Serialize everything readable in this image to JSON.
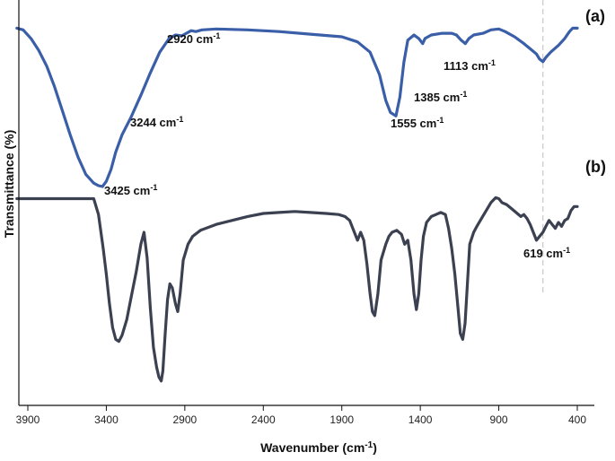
{
  "chart_data": {
    "type": "line",
    "xlabel": "Wavenumber (cm",
    "xlabel_sup": "-1",
    "xlabel_close": ")",
    "ylabel": "Transmittance (%)",
    "xlim": [
      4000,
      300
    ],
    "x_reversed": true,
    "x_ticks": [
      3900,
      3400,
      2900,
      2400,
      1900,
      1400,
      900,
      400
    ],
    "grid": false,
    "legend": "none",
    "reference_line_x": 619,
    "series": [
      {
        "panel_label": "(a)",
        "color": "#3a5fa8",
        "points": [
          [
            3970,
            92
          ],
          [
            3930,
            91
          ],
          [
            3880,
            86
          ],
          [
            3830,
            79
          ],
          [
            3780,
            70
          ],
          [
            3730,
            58
          ],
          [
            3680,
            44
          ],
          [
            3630,
            30
          ],
          [
            3580,
            17
          ],
          [
            3530,
            7
          ],
          [
            3480,
            2
          ],
          [
            3450,
            0.5
          ],
          [
            3425,
            0
          ],
          [
            3400,
            3
          ],
          [
            3370,
            10
          ],
          [
            3340,
            20
          ],
          [
            3300,
            30
          ],
          [
            3244,
            40
          ],
          [
            3180,
            53
          ],
          [
            3120,
            66
          ],
          [
            3060,
            78
          ],
          [
            3000,
            86
          ],
          [
            2960,
            88
          ],
          [
            2920,
            87.5
          ],
          [
            2890,
            89
          ],
          [
            2860,
            90.5
          ],
          [
            2830,
            90
          ],
          [
            2790,
            91
          ],
          [
            2700,
            91.5
          ],
          [
            2500,
            91
          ],
          [
            2300,
            90
          ],
          [
            2100,
            88.5
          ],
          [
            1900,
            87
          ],
          [
            1800,
            84
          ],
          [
            1720,
            78
          ],
          [
            1660,
            65
          ],
          [
            1620,
            50
          ],
          [
            1590,
            43
          ],
          [
            1555,
            41
          ],
          [
            1530,
            52
          ],
          [
            1505,
            72
          ],
          [
            1480,
            85
          ],
          [
            1440,
            88
          ],
          [
            1410,
            86
          ],
          [
            1385,
            83
          ],
          [
            1370,
            86
          ],
          [
            1330,
            88
          ],
          [
            1260,
            89
          ],
          [
            1200,
            89
          ],
          [
            1170,
            88
          ],
          [
            1140,
            85
          ],
          [
            1113,
            83
          ],
          [
            1090,
            86
          ],
          [
            1060,
            88
          ],
          [
            1000,
            89
          ],
          [
            950,
            91
          ],
          [
            900,
            91.5
          ],
          [
            860,
            90
          ],
          [
            800,
            87
          ],
          [
            740,
            83
          ],
          [
            700,
            80
          ],
          [
            660,
            77
          ],
          [
            640,
            74
          ],
          [
            619,
            72.5
          ],
          [
            600,
            75
          ],
          [
            570,
            78
          ],
          [
            520,
            82
          ],
          [
            480,
            86
          ],
          [
            450,
            90
          ],
          [
            430,
            92
          ],
          [
            400,
            92
          ]
        ],
        "annotations": [
          {
            "text": "2920 cm",
            "sup": "-1"
          },
          {
            "text": "3244 cm",
            "sup": "-1"
          },
          {
            "text": "3425 cm",
            "sup": "-1"
          },
          {
            "text": "1555 cm",
            "sup": "-1"
          },
          {
            "text": "1385 cm",
            "sup": "-1"
          },
          {
            "text": "1113 cm",
            "sup": "-1"
          }
        ]
      },
      {
        "panel_label": "(b)",
        "color": "#3b4150",
        "points": [
          [
            3970,
            93
          ],
          [
            3600,
            93
          ],
          [
            3480,
            93
          ],
          [
            3450,
            85
          ],
          [
            3420,
            68
          ],
          [
            3400,
            55
          ],
          [
            3380,
            40
          ],
          [
            3360,
            28
          ],
          [
            3340,
            22
          ],
          [
            3320,
            21
          ],
          [
            3300,
            24
          ],
          [
            3270,
            32
          ],
          [
            3240,
            44
          ],
          [
            3210,
            56
          ],
          [
            3180,
            70
          ],
          [
            3160,
            76
          ],
          [
            3140,
            63
          ],
          [
            3120,
            38
          ],
          [
            3100,
            18
          ],
          [
            3080,
            8
          ],
          [
            3065,
            3
          ],
          [
            3050,
            1
          ],
          [
            3040,
            6
          ],
          [
            3025,
            25
          ],
          [
            3010,
            42
          ],
          [
            2995,
            50
          ],
          [
            2980,
            48
          ],
          [
            2960,
            40
          ],
          [
            2945,
            36
          ],
          [
            2930,
            45
          ],
          [
            2910,
            62
          ],
          [
            2880,
            70
          ],
          [
            2850,
            74
          ],
          [
            2800,
            77
          ],
          [
            2700,
            80
          ],
          [
            2600,
            82
          ],
          [
            2500,
            84
          ],
          [
            2400,
            85.5
          ],
          [
            2300,
            86
          ],
          [
            2200,
            86.5
          ],
          [
            2100,
            86
          ],
          [
            2000,
            85.5
          ],
          [
            1920,
            85
          ],
          [
            1880,
            84
          ],
          [
            1850,
            82
          ],
          [
            1820,
            76
          ],
          [
            1800,
            72
          ],
          [
            1780,
            76
          ],
          [
            1760,
            72
          ],
          [
            1740,
            60
          ],
          [
            1720,
            45
          ],
          [
            1705,
            36
          ],
          [
            1690,
            34
          ],
          [
            1670,
            45
          ],
          [
            1650,
            62
          ],
          [
            1620,
            70
          ],
          [
            1600,
            74
          ],
          [
            1580,
            76
          ],
          [
            1550,
            77
          ],
          [
            1520,
            75
          ],
          [
            1500,
            70
          ],
          [
            1480,
            72
          ],
          [
            1460,
            62
          ],
          [
            1440,
            45
          ],
          [
            1425,
            37
          ],
          [
            1410,
            45
          ],
          [
            1395,
            62
          ],
          [
            1380,
            74
          ],
          [
            1360,
            81
          ],
          [
            1330,
            84
          ],
          [
            1300,
            85
          ],
          [
            1270,
            86
          ],
          [
            1240,
            85
          ],
          [
            1220,
            78
          ],
          [
            1200,
            68
          ],
          [
            1180,
            55
          ],
          [
            1160,
            38
          ],
          [
            1145,
            25
          ],
          [
            1130,
            22
          ],
          [
            1115,
            30
          ],
          [
            1100,
            50
          ],
          [
            1085,
            70
          ],
          [
            1060,
            76
          ],
          [
            1040,
            79
          ],
          [
            1010,
            83
          ],
          [
            980,
            87
          ],
          [
            950,
            91
          ],
          [
            920,
            93.5
          ],
          [
            900,
            93
          ],
          [
            880,
            91
          ],
          [
            850,
            90
          ],
          [
            820,
            88
          ],
          [
            790,
            86
          ],
          [
            760,
            84
          ],
          [
            740,
            85
          ],
          [
            720,
            83
          ],
          [
            700,
            80
          ],
          [
            680,
            76
          ],
          [
            660,
            72
          ],
          [
            640,
            74
          ],
          [
            619,
            76
          ],
          [
            600,
            79
          ],
          [
            580,
            82
          ],
          [
            560,
            80
          ],
          [
            540,
            78
          ],
          [
            520,
            81
          ],
          [
            500,
            79
          ],
          [
            480,
            82
          ],
          [
            460,
            83
          ],
          [
            440,
            87
          ],
          [
            420,
            89
          ],
          [
            400,
            89
          ]
        ],
        "annotations": [
          {
            "text": "619 cm",
            "sup": "-1"
          }
        ]
      }
    ]
  }
}
